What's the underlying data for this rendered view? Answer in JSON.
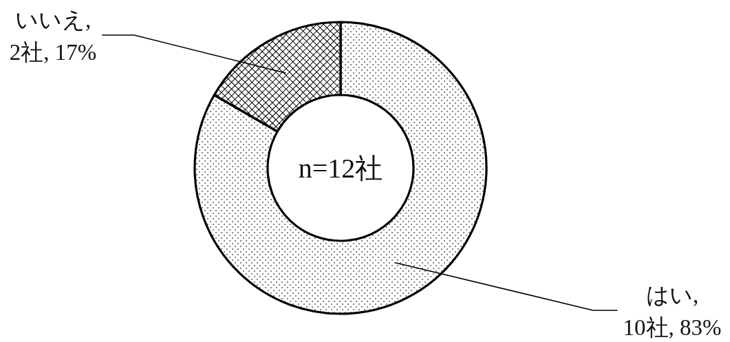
{
  "chart_data": {
    "type": "donut",
    "categories": [
      null,
      null
    ],
    "values": [
      10,
      2
    ],
    "value_labels": [
      "はい, 10社, 83%",
      "いいえ, 2社, 17%"
    ],
    "annotations": [
      "n=12社"
    ]
  }
}
